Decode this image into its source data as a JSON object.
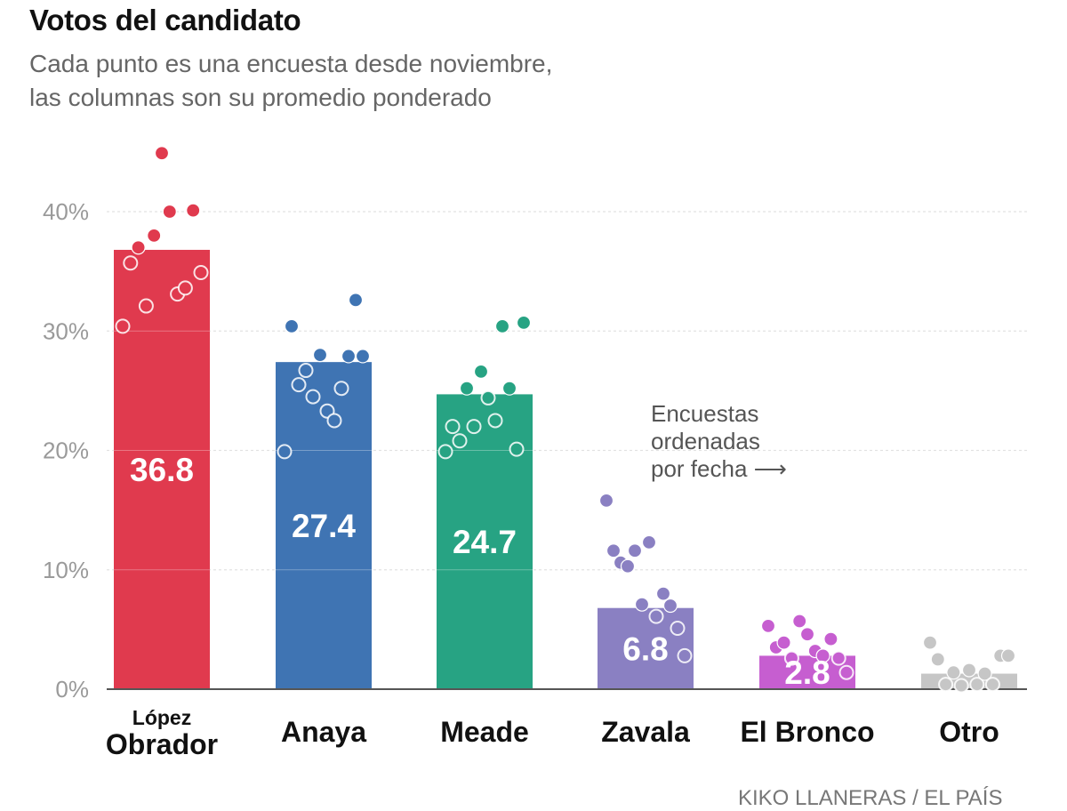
{
  "header": {
    "title": "Votos del candidato",
    "subtitle_lines": [
      "Cada punto es una encuesta desde noviembre,",
      "las columnas son su promedio ponderado"
    ]
  },
  "chart_data": {
    "type": "bar",
    "title": "Votos del candidato",
    "subtitle": "Cada punto es una encuesta desde noviembre, las columnas son su promedio ponderado",
    "ylim": [
      0,
      40
    ],
    "yticks": [
      0,
      10,
      20,
      30,
      40
    ],
    "ytick_labels": [
      "0%",
      "10%",
      "20%",
      "30%",
      "40%"
    ],
    "grid": true,
    "categories": [
      {
        "name": "López Obrador",
        "lines": [
          "López",
          "Obrador"
        ]
      },
      {
        "name": "Anaya",
        "lines": [
          "Anaya"
        ]
      },
      {
        "name": "Meade",
        "lines": [
          "Meade"
        ]
      },
      {
        "name": "Zavala",
        "lines": [
          "Zavala"
        ]
      },
      {
        "name": "El Bronco",
        "lines": [
          "El Bronco"
        ]
      },
      {
        "name": "Otro",
        "lines": [
          "Otro"
        ]
      }
    ],
    "values": [
      36.8,
      27.4,
      24.7,
      6.8,
      2.8,
      1.3
    ],
    "value_labels": [
      "36.8",
      "27.4",
      "24.7",
      "6.8",
      "2.8",
      ""
    ],
    "colors": [
      "#e03a4e",
      "#3f74b3",
      "#27a383",
      "#8a80c2",
      "#c65ed0",
      "#c6c6c6"
    ],
    "polls_ordered_by_date": [
      [
        30.4,
        35.7,
        37.0,
        32.1,
        38.0,
        44.9,
        40.0,
        33.1,
        33.6,
        40.1,
        34.9
      ],
      [
        19.9,
        30.4,
        25.5,
        26.7,
        24.5,
        28.0,
        23.3,
        22.5,
        25.2,
        27.9,
        32.6,
        27.9
      ],
      [
        19.9,
        22.0,
        20.8,
        25.2,
        22.0,
        26.6,
        24.4,
        22.5,
        30.4,
        25.2,
        20.1,
        30.7
      ],
      [
        15.8,
        11.6,
        10.6,
        10.3,
        11.6,
        7.1,
        12.3,
        6.1,
        8.0,
        7.0,
        5.1,
        2.8
      ],
      [
        5.3,
        3.5,
        3.9,
        2.6,
        5.7,
        4.6,
        3.2,
        2.8,
        4.2,
        2.6,
        1.4
      ],
      [
        3.9,
        2.5,
        0.4,
        1.4,
        0.3,
        1.6,
        0.4,
        1.3,
        0.4,
        2.8,
        2.8
      ]
    ],
    "annotation": [
      "Encuestas",
      "ordenadas",
      "por fecha ⟶"
    ]
  },
  "footer": {
    "credit": "KIKO LLANERAS / EL PAÍS"
  }
}
